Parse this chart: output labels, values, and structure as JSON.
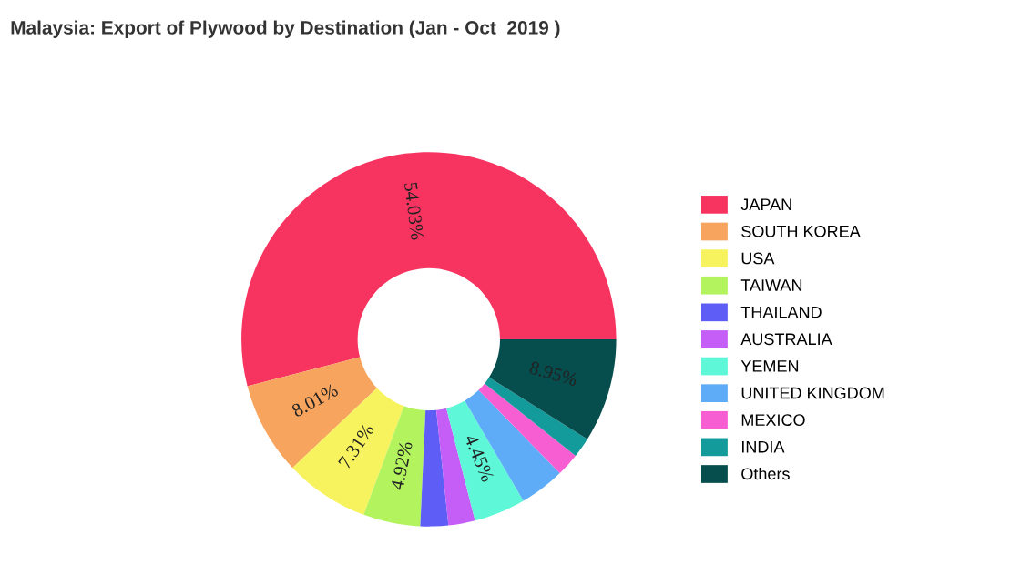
{
  "chart_data": {
    "type": "donut",
    "title": "Malaysia: Export of Plywood by Destination (Jan - Oct  2019 )",
    "categories": [
      "JAPAN",
      "SOUTH KOREA",
      "USA",
      "TAIWAN",
      "THAILAND",
      "AUSTRALIA",
      "YEMEN",
      "UNITED KINGDOM",
      "MEXICO",
      "INDIA",
      "Others"
    ],
    "values": [
      54.03,
      8.01,
      7.31,
      4.92,
      2.4,
      2.3,
      4.45,
      3.9,
      2.0,
      1.73,
      8.95
    ],
    "value_labels": [
      "54.03%",
      "8.01%",
      "7.31%",
      "4.92%",
      null,
      null,
      "4.45%",
      null,
      null,
      null,
      "8.95%"
    ],
    "colors": [
      "#f73360",
      "#f7a55e",
      "#f7f35e",
      "#b2f35e",
      "#5e5ef7",
      "#c45ef7",
      "#5ef7d8",
      "#5eacf7",
      "#f75ed2",
      "#139a9a",
      "#064d4d"
    ],
    "legend": "right"
  }
}
